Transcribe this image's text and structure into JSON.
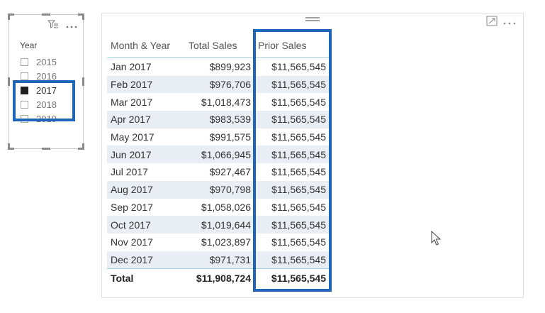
{
  "slicer": {
    "title": "Year",
    "items": [
      {
        "label": "2015",
        "checked": false
      },
      {
        "label": "2016",
        "checked": false
      },
      {
        "label": "2017",
        "checked": true
      },
      {
        "label": "2018",
        "checked": false
      },
      {
        "label": "2019",
        "checked": false
      }
    ],
    "icons": [
      "eraser-filter-icon",
      "more-options-icon"
    ]
  },
  "table": {
    "columns": [
      "Month & Year",
      "Total Sales",
      "Prior Sales"
    ],
    "rows": [
      [
        "Jan 2017",
        "$899,923",
        "$11,565,545"
      ],
      [
        "Feb 2017",
        "$976,706",
        "$11,565,545"
      ],
      [
        "Mar 2017",
        "$1,018,473",
        "$11,565,545"
      ],
      [
        "Apr 2017",
        "$983,539",
        "$11,565,545"
      ],
      [
        "May 2017",
        "$991,575",
        "$11,565,545"
      ],
      [
        "Jun 2017",
        "$1,066,945",
        "$11,565,545"
      ],
      [
        "Jul 2017",
        "$927,467",
        "$11,565,545"
      ],
      [
        "Aug 2017",
        "$970,798",
        "$11,565,545"
      ],
      [
        "Sep 2017",
        "$1,058,026",
        "$11,565,545"
      ],
      [
        "Oct 2017",
        "$1,019,644",
        "$11,565,545"
      ],
      [
        "Nov 2017",
        "$1,023,897",
        "$11,565,545"
      ],
      [
        "Dec 2017",
        "$971,731",
        "$11,565,545"
      ]
    ],
    "total": [
      "Total",
      "$11,908,724",
      "$11,565,545"
    ],
    "icons": [
      "focus-mode-icon",
      "more-options-icon"
    ]
  },
  "colors": {
    "highlight": "#1f65b8",
    "row_stripe": "#e9edf4",
    "header_rule": "#9ad1e5"
  }
}
